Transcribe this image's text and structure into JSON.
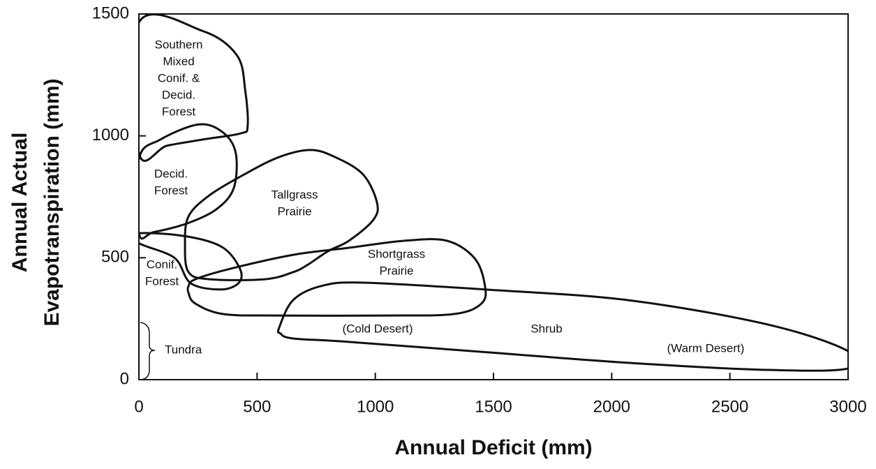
{
  "chart_data": {
    "type": "region",
    "xlabel": "Annual Deficit (mm)",
    "ylabel": [
      "Annual Actual",
      "Evapotranspiration (mm)"
    ],
    "xlim": [
      0,
      3000
    ],
    "xticks": [
      0,
      500,
      1000,
      1500,
      2000,
      2500,
      3000
    ],
    "ylim": [
      0,
      1500
    ],
    "yticks": [
      0,
      500,
      1000,
      1500
    ],
    "color": "#111111",
    "regions": [
      {
        "label": [
          "Southern",
          "Mixed",
          "Conif. &",
          "Decid.",
          "Forest"
        ],
        "x": [
          0,
          270,
          415,
          450,
          460,
          430,
          270,
          120,
          0
        ],
        "y": [
          1465,
          1430,
          1330,
          1185,
          1040,
          1010,
          985,
          960,
          930
        ]
      },
      {
        "label": [
          "Decid.",
          "Forest"
        ],
        "x": [
          0,
          91,
          254,
          357,
          410,
          401,
          328,
          207,
          62,
          0
        ],
        "y": [
          905,
          985,
          1047,
          1013,
          928,
          785,
          699,
          642,
          605,
          601
        ]
      },
      {
        "label": [
          "Tallgrass",
          "Prairie"
        ],
        "x": [
          210,
          298,
          446,
          593,
          726,
          830,
          948,
          1007,
          992,
          889,
          800,
          712,
          652,
          534,
          298,
          210,
          195
        ],
        "y": [
          670,
          756,
          842,
          913,
          942,
          913,
          842,
          727,
          656,
          570,
          527,
          470,
          441,
          412,
          412,
          441,
          555
        ]
      },
      {
        "label": [
          "Conif.",
          "Forest"
        ],
        "x": [
          0,
          200,
          350,
          425,
          425,
          350,
          220,
          150,
          0
        ],
        "y": [
          600,
          588,
          545,
          460,
          400,
          370,
          395,
          500,
          560
        ]
      },
      {
        "label": [
          "Shortgrass",
          "Prairie"
        ],
        "x": [
          210,
          239,
          387,
          653,
          889,
          1125,
          1302,
          1420,
          1464,
          1449,
          1331,
          1036,
          593,
          357,
          239,
          210
        ],
        "y": [
          384,
          412,
          455,
          512,
          541,
          570,
          570,
          498,
          384,
          312,
          269,
          263,
          263,
          269,
          312,
          355
        ]
      },
      {
        "label": [
          "(Cold Desert)",
          "Shrub",
          "(Warm Desert)"
        ],
        "x": [
          593,
          652,
          771,
          948,
          1479,
          2070,
          2661,
          3000,
          3000,
          2661,
          2070,
          1479,
          889,
          652,
          599
        ],
        "y": [
          212,
          326,
          384,
          398,
          369,
          326,
          226,
          117,
          46,
          40,
          69,
          112,
          155,
          169,
          189
        ]
      }
    ],
    "annotations": [
      "Tundra"
    ]
  }
}
